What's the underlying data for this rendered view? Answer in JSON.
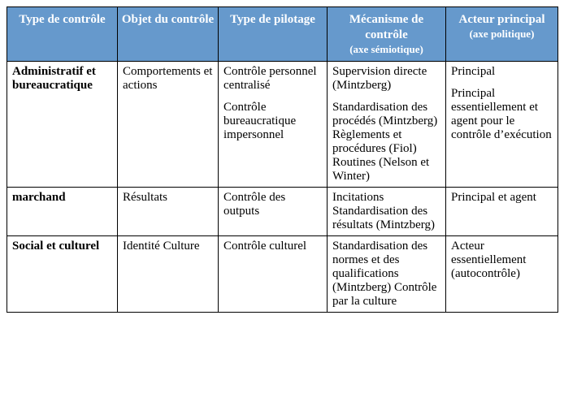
{
  "headers": {
    "c1": "Type de contrôle",
    "c2": "Objet du contrôle",
    "c3": "Type de pilotage",
    "c4": "Mécanisme de contrôle",
    "c4_sub": "(axe sémiotique)",
    "c5": "Acteur principal",
    "c5_sub": "(axe politique)"
  },
  "rows": {
    "r1": {
      "type": "Administratif et bureaucratique",
      "objet": "Comportements et actions",
      "pilotage_a": "Contrôle personnel centralisé",
      "pilotage_b": "Contrôle bureaucratique impersonnel",
      "meca_a": "Supervision directe (Mintzberg)",
      "meca_b": "Standardisation des procédés (Mintzberg) Règlements et procédures (Fiol) Routines (Nelson et Winter)",
      "acteur_a": "Principal",
      "acteur_b": "Principal essentiellement et agent pour le contrôle d’exécution"
    },
    "r2": {
      "type": "marchand",
      "objet": "Résultats",
      "pilotage": "Contrôle des outputs",
      "meca": "Incitations Standardisation des résultats (Mintzberg)",
      "acteur": "Principal et agent"
    },
    "r3": {
      "type": "Social et culturel",
      "objet": "Identité Culture",
      "pilotage": "Contrôle culturel",
      "meca": "Standardisation des normes et des qualifications (Mintzberg) Contrôle par la culture",
      "acteur": "Acteur essentiellement (autocontrôle)"
    }
  }
}
